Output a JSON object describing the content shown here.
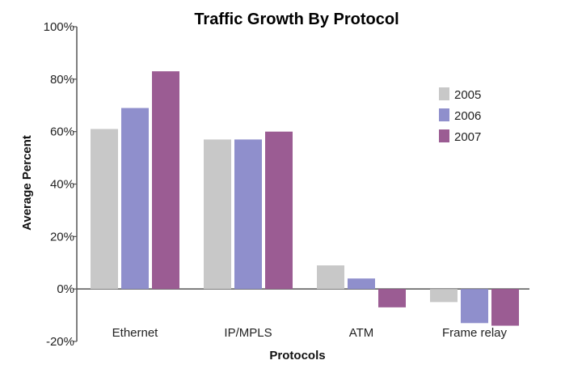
{
  "chart_data": {
    "type": "bar",
    "title": "Traffic Growth By Protocol",
    "xlabel": "Protocols",
    "ylabel": "Average Percent",
    "ylim": [
      -20,
      100
    ],
    "yticks": [
      "-20%",
      "0%",
      "20%",
      "40%",
      "60%",
      "80%",
      "100%"
    ],
    "categories": [
      "Ethernet",
      "IP/MPLS",
      "ATM",
      "Frame relay"
    ],
    "series": [
      {
        "name": "2005",
        "color": "#c8c8c8",
        "values": [
          61,
          57,
          9,
          -5
        ]
      },
      {
        "name": "2006",
        "color": "#8f8fcc",
        "values": [
          69,
          57,
          4,
          -13
        ]
      },
      {
        "name": "2007",
        "color": "#9b5c93",
        "values": [
          83,
          60,
          -7,
          -14
        ]
      }
    ],
    "legend": "top-right",
    "grid": false
  }
}
